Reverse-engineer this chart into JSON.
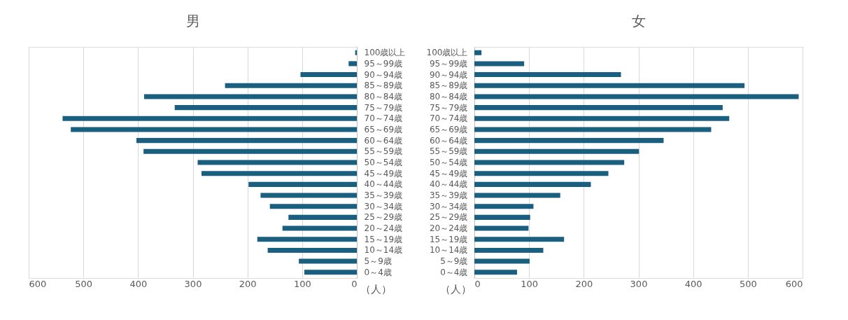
{
  "chart_data": [
    {
      "type": "bar",
      "orientation": "horizontal",
      "title": "男",
      "xlabel": "（人）",
      "categories": [
        "100歳以上",
        "95～99歳",
        "90～94歳",
        "85～89歳",
        "80～84歳",
        "75～79歳",
        "70～74歳",
        "65～69歳",
        "60～64歳",
        "55～59歳",
        "50～54歳",
        "45～49歳",
        "40～44歳",
        "35～39歳",
        "30～34歳",
        "25～29歳",
        "20～24歳",
        "15～19歳",
        "10～14歳",
        "5～9歳",
        "0～4歳"
      ],
      "values": [
        3,
        15,
        103,
        241,
        389,
        333,
        538,
        523,
        403,
        390,
        291,
        284,
        198,
        176,
        159,
        125,
        136,
        182,
        163,
        106,
        96
      ],
      "color": "#1a5e80",
      "xlim": [
        600,
        0
      ],
      "xticks": [
        600,
        500,
        400,
        300,
        200,
        100,
        0
      ],
      "grid": "x"
    },
    {
      "type": "bar",
      "orientation": "horizontal",
      "title": "女",
      "xlabel": "（人）",
      "categories": [
        "100歳以上",
        "95～99歳",
        "90～94歳",
        "85～89歳",
        "80～84歳",
        "75～79歳",
        "70～74歳",
        "65～69歳",
        "60～64歳",
        "55～59歳",
        "50～54歳",
        "45～49歳",
        "40～44歳",
        "35～39歳",
        "30～34歳",
        "25～29歳",
        "20～24歳",
        "15～19歳",
        "10～14歳",
        "5～9歳",
        "0～4歳"
      ],
      "values": [
        13,
        91,
        268,
        494,
        593,
        454,
        466,
        433,
        346,
        301,
        274,
        245,
        213,
        157,
        108,
        102,
        99,
        164,
        126,
        101,
        78
      ],
      "color": "#1a5e80",
      "xlim": [
        0,
        600
      ],
      "xticks": [
        0,
        100,
        200,
        300,
        400,
        500,
        600
      ],
      "grid": "x"
    }
  ]
}
